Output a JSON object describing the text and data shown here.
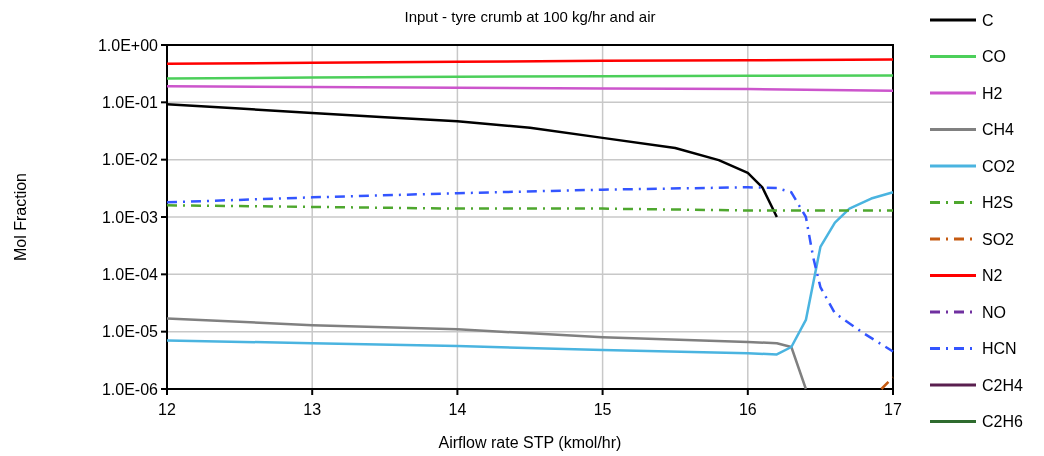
{
  "chart_data": {
    "type": "line",
    "title": "Input - tyre crumb at 100 kg/hr and air",
    "xlabel": "Airflow rate STP (kmol/hr)",
    "ylabel": "Mol Fraction",
    "log": "y",
    "grid": true,
    "legend": "right",
    "xlim": [
      12,
      17
    ],
    "xticks": [
      12,
      13,
      14,
      15,
      16,
      17
    ],
    "ylim": [
      1e-06,
      1
    ],
    "yticks": [
      {
        "value": 1e-06,
        "label": "1.0E-06"
      },
      {
        "value": 1e-05,
        "label": "1.0E-05"
      },
      {
        "value": 0.0001,
        "label": "1.0E-04"
      },
      {
        "value": 0.001,
        "label": "1.0E-03"
      },
      {
        "value": 0.01,
        "label": "1.0E-02"
      },
      {
        "value": 0.1,
        "label": "1.0E-01"
      },
      {
        "value": 1,
        "label": "1.0E+00"
      }
    ],
    "series": [
      {
        "name": "C",
        "color": "#000000",
        "line_style": "solid",
        "x": [
          12,
          12.5,
          13,
          13.5,
          14,
          14.5,
          15,
          15.5,
          15.8,
          16,
          16.1,
          16.2
        ],
        "values": [
          0.093,
          0.078,
          0.065,
          0.055,
          0.047,
          0.036,
          0.024,
          0.016,
          0.0098,
          0.0059,
          0.0033,
          0.001
        ]
      },
      {
        "name": "CO",
        "color": "#4ccf5a",
        "line_style": "solid",
        "x": [
          12,
          13,
          14,
          15,
          16,
          17
        ],
        "values": [
          0.26,
          0.27,
          0.28,
          0.285,
          0.29,
          0.295
        ]
      },
      {
        "name": "H2",
        "color": "#cc55cc",
        "line_style": "solid",
        "x": [
          12,
          13,
          14,
          15,
          16,
          17
        ],
        "values": [
          0.19,
          0.185,
          0.18,
          0.175,
          0.17,
          0.16
        ]
      },
      {
        "name": "CH4",
        "color": "#808080",
        "line_style": "solid",
        "x": [
          12,
          13,
          14,
          15,
          16,
          16.2,
          16.3,
          16.4
        ],
        "values": [
          1.7e-05,
          1.3e-05,
          1.1e-05,
          8e-06,
          6.6e-06,
          6.3e-06,
          5.4e-06,
          1e-06
        ]
      },
      {
        "name": "CO2",
        "color": "#4ab4e0",
        "line_style": "solid",
        "x": [
          12,
          13,
          14,
          15,
          16,
          16.2,
          16.3,
          16.4,
          16.5,
          16.6,
          16.7,
          16.85,
          17
        ],
        "values": [
          7e-06,
          6.3e-06,
          5.6e-06,
          4.8e-06,
          4.2e-06,
          4e-06,
          5.4e-06,
          1.6e-05,
          0.0003,
          0.0008,
          0.0014,
          0.0021,
          0.0027
        ]
      },
      {
        "name": "H2S",
        "color": "#4ea72e",
        "line_style": "dashed",
        "x": [
          12,
          13,
          14,
          15,
          16,
          17
        ],
        "values": [
          0.0016,
          0.0015,
          0.0014,
          0.0014,
          0.0013,
          0.0013
        ]
      },
      {
        "name": "SO2",
        "color": "#c55a11",
        "line_style": "dashed",
        "x": [
          16.92,
          17
        ],
        "values": [
          1e-06,
          1.6e-06
        ]
      },
      {
        "name": "N2",
        "color": "#ff0000",
        "line_style": "solid",
        "x": [
          12,
          13,
          14,
          15,
          16,
          17
        ],
        "values": [
          0.47,
          0.49,
          0.51,
          0.53,
          0.54,
          0.56
        ]
      },
      {
        "name": "NO",
        "color": "#7030a0",
        "line_style": "dashed"
      },
      {
        "name": "HCN",
        "color": "#3355ff",
        "line_style": "dashed",
        "x": [
          12,
          13,
          14,
          15,
          16,
          16.2,
          16.3,
          16.4,
          16.45,
          16.5,
          16.6,
          16.8,
          17
        ],
        "values": [
          0.0018,
          0.0022,
          0.0026,
          0.003,
          0.0033,
          0.0032,
          0.0027,
          0.001,
          0.0002,
          6e-05,
          2.1e-05,
          9.3e-06,
          4.5e-06
        ]
      },
      {
        "name": "C2H4",
        "color": "#5a1f4f",
        "line_style": "solid"
      },
      {
        "name": "C2H6",
        "color": "#2e6b2e",
        "line_style": "solid"
      }
    ]
  }
}
